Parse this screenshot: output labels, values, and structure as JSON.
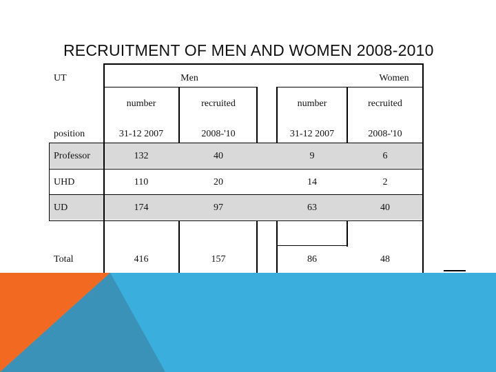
{
  "title": "RECRUITMENT OF MEN AND WOMEN 2008-2010",
  "table": {
    "corner_label": "UT",
    "group_men": "Men",
    "group_women": "Women",
    "subheaders": [
      "number",
      "recruited",
      "number",
      "recruited"
    ],
    "position_label": "position",
    "subheaders2": [
      "31-12 2007",
      "2008-'10",
      "31-12 2007",
      "2008-'10"
    ],
    "rows": [
      {
        "label": "Professor",
        "values": [
          "132",
          "40",
          "9",
          "6"
        ]
      },
      {
        "label": "UHD",
        "values": [
          "110",
          "20",
          "14",
          "2"
        ]
      },
      {
        "label": "UD",
        "values": [
          "174",
          "97",
          "63",
          "40"
        ]
      }
    ],
    "total": {
      "label": "Total",
      "values": [
        "416",
        "157",
        "86",
        "48"
      ]
    }
  },
  "colors": {
    "row_gray": "#d9d9d9",
    "band_blue": "#3aaedc",
    "band_orange": "#f26a21",
    "band_teal": "#3a92b8"
  }
}
